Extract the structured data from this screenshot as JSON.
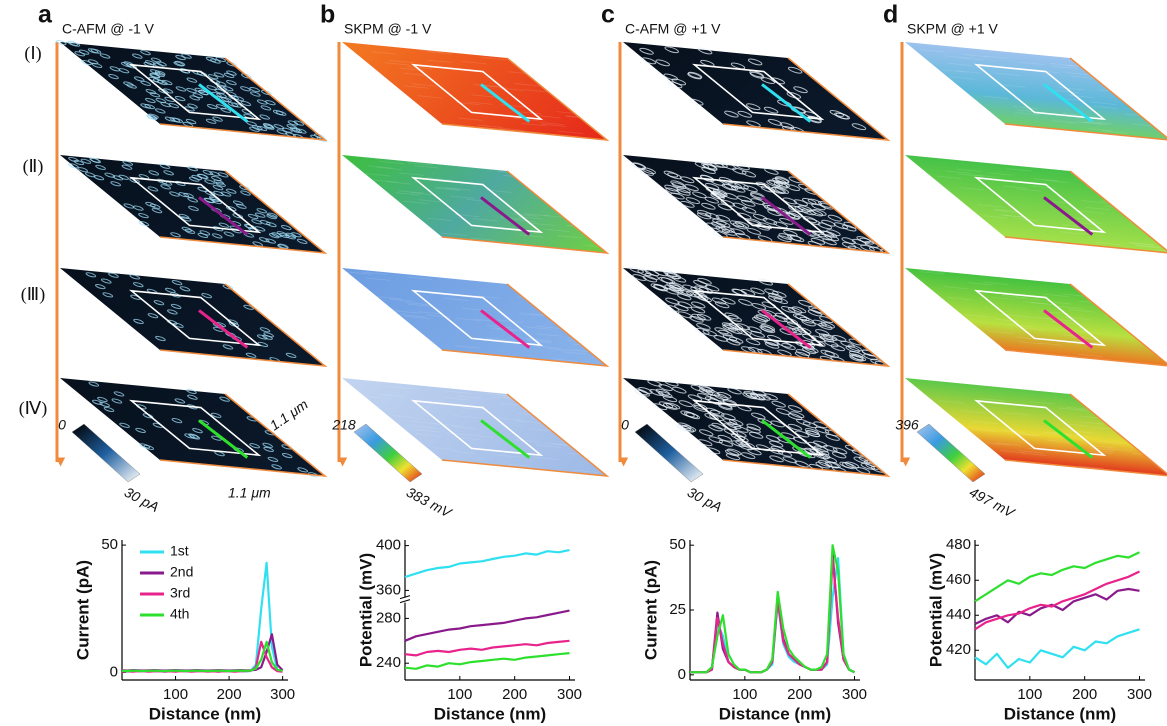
{
  "panels": [
    {
      "letter": "a",
      "map_label": "C-AFM @ -1 V",
      "colorbar": [
        "0",
        "30 pA"
      ]
    },
    {
      "letter": "b",
      "map_label": "SKPM @ -1 V",
      "colorbar": [
        "218",
        "383 mV"
      ]
    },
    {
      "letter": "c",
      "map_label": "C-AFM @ +1 V",
      "colorbar": [
        "0",
        "30 pA"
      ]
    },
    {
      "letter": "d",
      "map_label": "SKPM @ +1 V",
      "colorbar": [
        "396",
        "497 mV"
      ]
    }
  ],
  "row_labels": [
    "(Ⅰ)",
    "(Ⅱ)",
    "(Ⅲ)",
    "(Ⅳ)"
  ],
  "scale_labels": [
    "1.1 μm",
    "1.1 μm"
  ],
  "chart_data": [
    {
      "type": "line",
      "xlabel": "Distance (nm)",
      "ylabel": "Current (pA)",
      "legend": "upper left",
      "x": [
        0,
        10,
        20,
        30,
        40,
        50,
        60,
        70,
        80,
        90,
        100,
        110,
        120,
        130,
        140,
        150,
        160,
        170,
        180,
        190,
        200,
        210,
        220,
        230,
        240,
        250,
        260,
        270,
        280,
        290,
        300
      ],
      "xlim": [
        0,
        310
      ],
      "xticks": [
        100,
        200,
        300
      ],
      "ylim": [
        -3,
        52
      ],
      "yticks": [
        0,
        50
      ],
      "series": [
        {
          "name": "1st",
          "color": "#2fe0f0",
          "values": [
            0.5,
            0.3,
            0.5,
            0.4,
            0.6,
            0.5,
            0.4,
            0.5,
            0.3,
            0.5,
            0.4,
            0.6,
            0.5,
            0.4,
            0.5,
            0.6,
            0.4,
            0.5,
            0.3,
            0.5,
            0.4,
            0.6,
            0.5,
            0.4,
            0.5,
            3,
            25,
            43,
            10,
            1,
            0.5
          ]
        },
        {
          "name": "2nd",
          "color": "#8a1a8c",
          "values": [
            0.8,
            0.7,
            0.9,
            0.8,
            0.7,
            0.8,
            0.9,
            0.8,
            0.7,
            0.8,
            0.9,
            0.8,
            0.7,
            0.8,
            0.9,
            0.8,
            0.7,
            0.8,
            0.9,
            0.8,
            0.7,
            0.8,
            0.9,
            0.8,
            0.8,
            1,
            2,
            8,
            15,
            3,
            0.8
          ]
        },
        {
          "name": "3rd",
          "color": "#e8238c",
          "values": [
            0.3,
            0.4,
            0.3,
            0.5,
            0.4,
            0.3,
            0.4,
            0.5,
            0.3,
            0.4,
            0.3,
            0.5,
            0.4,
            0.3,
            0.4,
            0.5,
            0.3,
            0.4,
            0.3,
            0.5,
            0.4,
            0.3,
            0.4,
            0.5,
            0.6,
            2,
            12,
            6,
            2,
            0.5,
            0.3
          ]
        },
        {
          "name": "4th",
          "color": "#2ee02e",
          "values": [
            0.6,
            0.5,
            0.7,
            0.6,
            0.5,
            0.6,
            0.7,
            0.6,
            0.5,
            0.6,
            0.7,
            0.6,
            0.5,
            0.6,
            0.7,
            0.6,
            0.5,
            0.6,
            0.7,
            0.6,
            0.5,
            0.6,
            0.7,
            0.6,
            0.7,
            1.5,
            5,
            12,
            4,
            1,
            0.6
          ]
        }
      ]
    },
    {
      "type": "line",
      "xlabel": "Distance (nm)",
      "ylabel": "Potential (mV)",
      "x": [
        0,
        20,
        40,
        60,
        80,
        100,
        120,
        140,
        160,
        180,
        200,
        220,
        240,
        260,
        280,
        300
      ],
      "xlim": [
        0,
        310
      ],
      "xticks": [
        100,
        200,
        300
      ],
      "ylim": [
        225,
        405
      ],
      "ybreak": [
        295,
        350
      ],
      "yticks": [
        240,
        280,
        360,
        400
      ],
      "series": [
        {
          "color": "#2fe0f0",
          "values": [
            372,
            375,
            378,
            380,
            381,
            384,
            385,
            386,
            388,
            390,
            391,
            393,
            392,
            395,
            394,
            396
          ]
        },
        {
          "color": "#8a1a8c",
          "values": [
            260,
            264,
            266,
            268,
            270,
            271,
            273,
            274,
            275,
            276,
            278,
            280,
            281,
            283,
            285,
            287
          ]
        },
        {
          "color": "#e8238c",
          "values": [
            248,
            247,
            250,
            251,
            250,
            252,
            253,
            252,
            254,
            255,
            256,
            257,
            256,
            258,
            259,
            260
          ]
        },
        {
          "color": "#2ee02e",
          "values": [
            236,
            235,
            238,
            237,
            240,
            239,
            241,
            242,
            243,
            244,
            243,
            245,
            246,
            247,
            248,
            249
          ]
        }
      ]
    },
    {
      "type": "line",
      "xlabel": "Distance (nm)",
      "ylabel": "Current (pA)",
      "x": [
        0,
        10,
        20,
        30,
        40,
        50,
        60,
        70,
        80,
        90,
        100,
        110,
        120,
        130,
        140,
        150,
        160,
        170,
        180,
        190,
        200,
        210,
        220,
        230,
        240,
        250,
        260,
        270,
        280,
        290,
        300
      ],
      "xlim": [
        0,
        310
      ],
      "xticks": [
        100,
        200,
        300
      ],
      "ylim": [
        -2,
        52
      ],
      "yticks": [
        0,
        25,
        50
      ],
      "series": [
        {
          "color": "#2fe0f0",
          "values": [
            1,
            1,
            1,
            1,
            2,
            20,
            15,
            5,
            3,
            2,
            2,
            1,
            1,
            1,
            2,
            4,
            28,
            12,
            7,
            5,
            4,
            3,
            2,
            2,
            2,
            4,
            30,
            45,
            8,
            2,
            1
          ]
        },
        {
          "color": "#8a1a8c",
          "values": [
            1,
            1,
            1,
            1,
            2,
            24,
            10,
            5,
            3,
            2,
            2,
            1,
            1,
            1,
            2,
            5,
            30,
            14,
            8,
            6,
            4,
            3,
            2,
            2,
            2,
            5,
            47,
            20,
            6,
            2,
            1
          ]
        },
        {
          "color": "#e8238c",
          "values": [
            1,
            1,
            1,
            1,
            2,
            22,
            12,
            5,
            3,
            2,
            2,
            1,
            1,
            1,
            2,
            5,
            29,
            13,
            8,
            6,
            4,
            3,
            2,
            2,
            2,
            5,
            45,
            22,
            6,
            2,
            1
          ]
        },
        {
          "color": "#2ee02e",
          "values": [
            1,
            1,
            1,
            1,
            3,
            15,
            23,
            8,
            4,
            2,
            2,
            1,
            1,
            1,
            2,
            6,
            32,
            18,
            10,
            7,
            5,
            3,
            2,
            2,
            3,
            8,
            50,
            40,
            8,
            2,
            1
          ]
        }
      ]
    },
    {
      "type": "line",
      "xlabel": "Distance (nm)",
      "ylabel": "Potential (mV)",
      "x": [
        0,
        20,
        40,
        60,
        80,
        100,
        120,
        140,
        160,
        180,
        200,
        220,
        240,
        260,
        280,
        300
      ],
      "xlim": [
        0,
        310
      ],
      "xticks": [
        100,
        200,
        300
      ],
      "ylim": [
        403,
        483
      ],
      "yticks": [
        420,
        440,
        460,
        480
      ],
      "series": [
        {
          "color": "#2fe0f0",
          "values": [
            416,
            412,
            418,
            410,
            415,
            413,
            420,
            418,
            416,
            422,
            420,
            425,
            424,
            428,
            430,
            432
          ]
        },
        {
          "color": "#8a1a8c",
          "values": [
            435,
            438,
            440,
            436,
            442,
            440,
            444,
            446,
            443,
            448,
            450,
            452,
            449,
            454,
            455,
            454
          ]
        },
        {
          "color": "#e8238c",
          "values": [
            432,
            436,
            438,
            440,
            441,
            444,
            446,
            445,
            448,
            450,
            452,
            455,
            458,
            460,
            462,
            465
          ]
        },
        {
          "color": "#2ee02e",
          "values": [
            448,
            452,
            456,
            460,
            458,
            462,
            464,
            463,
            466,
            468,
            467,
            470,
            472,
            474,
            473,
            476
          ]
        }
      ]
    }
  ]
}
